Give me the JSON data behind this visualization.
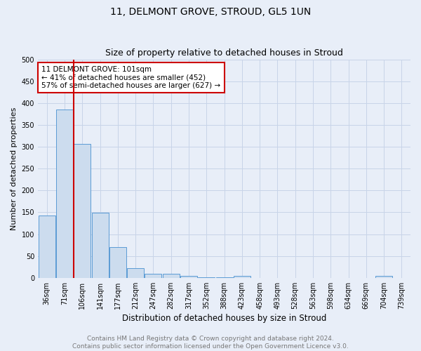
{
  "title": "11, DELMONT GROVE, STROUD, GL5 1UN",
  "subtitle": "Size of property relative to detached houses in Stroud",
  "xlabel": "Distribution of detached houses by size in Stroud",
  "ylabel": "Number of detached properties",
  "bin_labels": [
    "36sqm",
    "71sqm",
    "106sqm",
    "141sqm",
    "177sqm",
    "212sqm",
    "247sqm",
    "282sqm",
    "317sqm",
    "352sqm",
    "388sqm",
    "423sqm",
    "458sqm",
    "493sqm",
    "528sqm",
    "563sqm",
    "598sqm",
    "634sqm",
    "669sqm",
    "704sqm",
    "739sqm"
  ],
  "bar_heights": [
    143,
    385,
    307,
    149,
    71,
    23,
    10,
    10,
    5,
    2,
    2,
    5,
    0,
    0,
    0,
    0,
    0,
    0,
    0,
    5,
    0
  ],
  "bar_color": "#ccdcee",
  "bar_edge_color": "#5b9bd5",
  "red_line_bin": 2,
  "red_line_color": "#cc0000",
  "annotation_text": "11 DELMONT GROVE: 101sqm\n← 41% of detached houses are smaller (452)\n57% of semi-detached houses are larger (627) →",
  "annotation_box_color": "#ffffff",
  "annotation_box_edge": "#cc0000",
  "ylim": [
    0,
    500
  ],
  "yticks": [
    0,
    50,
    100,
    150,
    200,
    250,
    300,
    350,
    400,
    450,
    500
  ],
  "grid_color": "#c8d4e8",
  "background_color": "#e8eef8",
  "footer_text": "Contains HM Land Registry data © Crown copyright and database right 2024.\nContains public sector information licensed under the Open Government Licence v3.0.",
  "title_fontsize": 10,
  "subtitle_fontsize": 9,
  "xlabel_fontsize": 8.5,
  "ylabel_fontsize": 8,
  "tick_fontsize": 7,
  "annotation_fontsize": 7.5,
  "footer_fontsize": 6.5
}
